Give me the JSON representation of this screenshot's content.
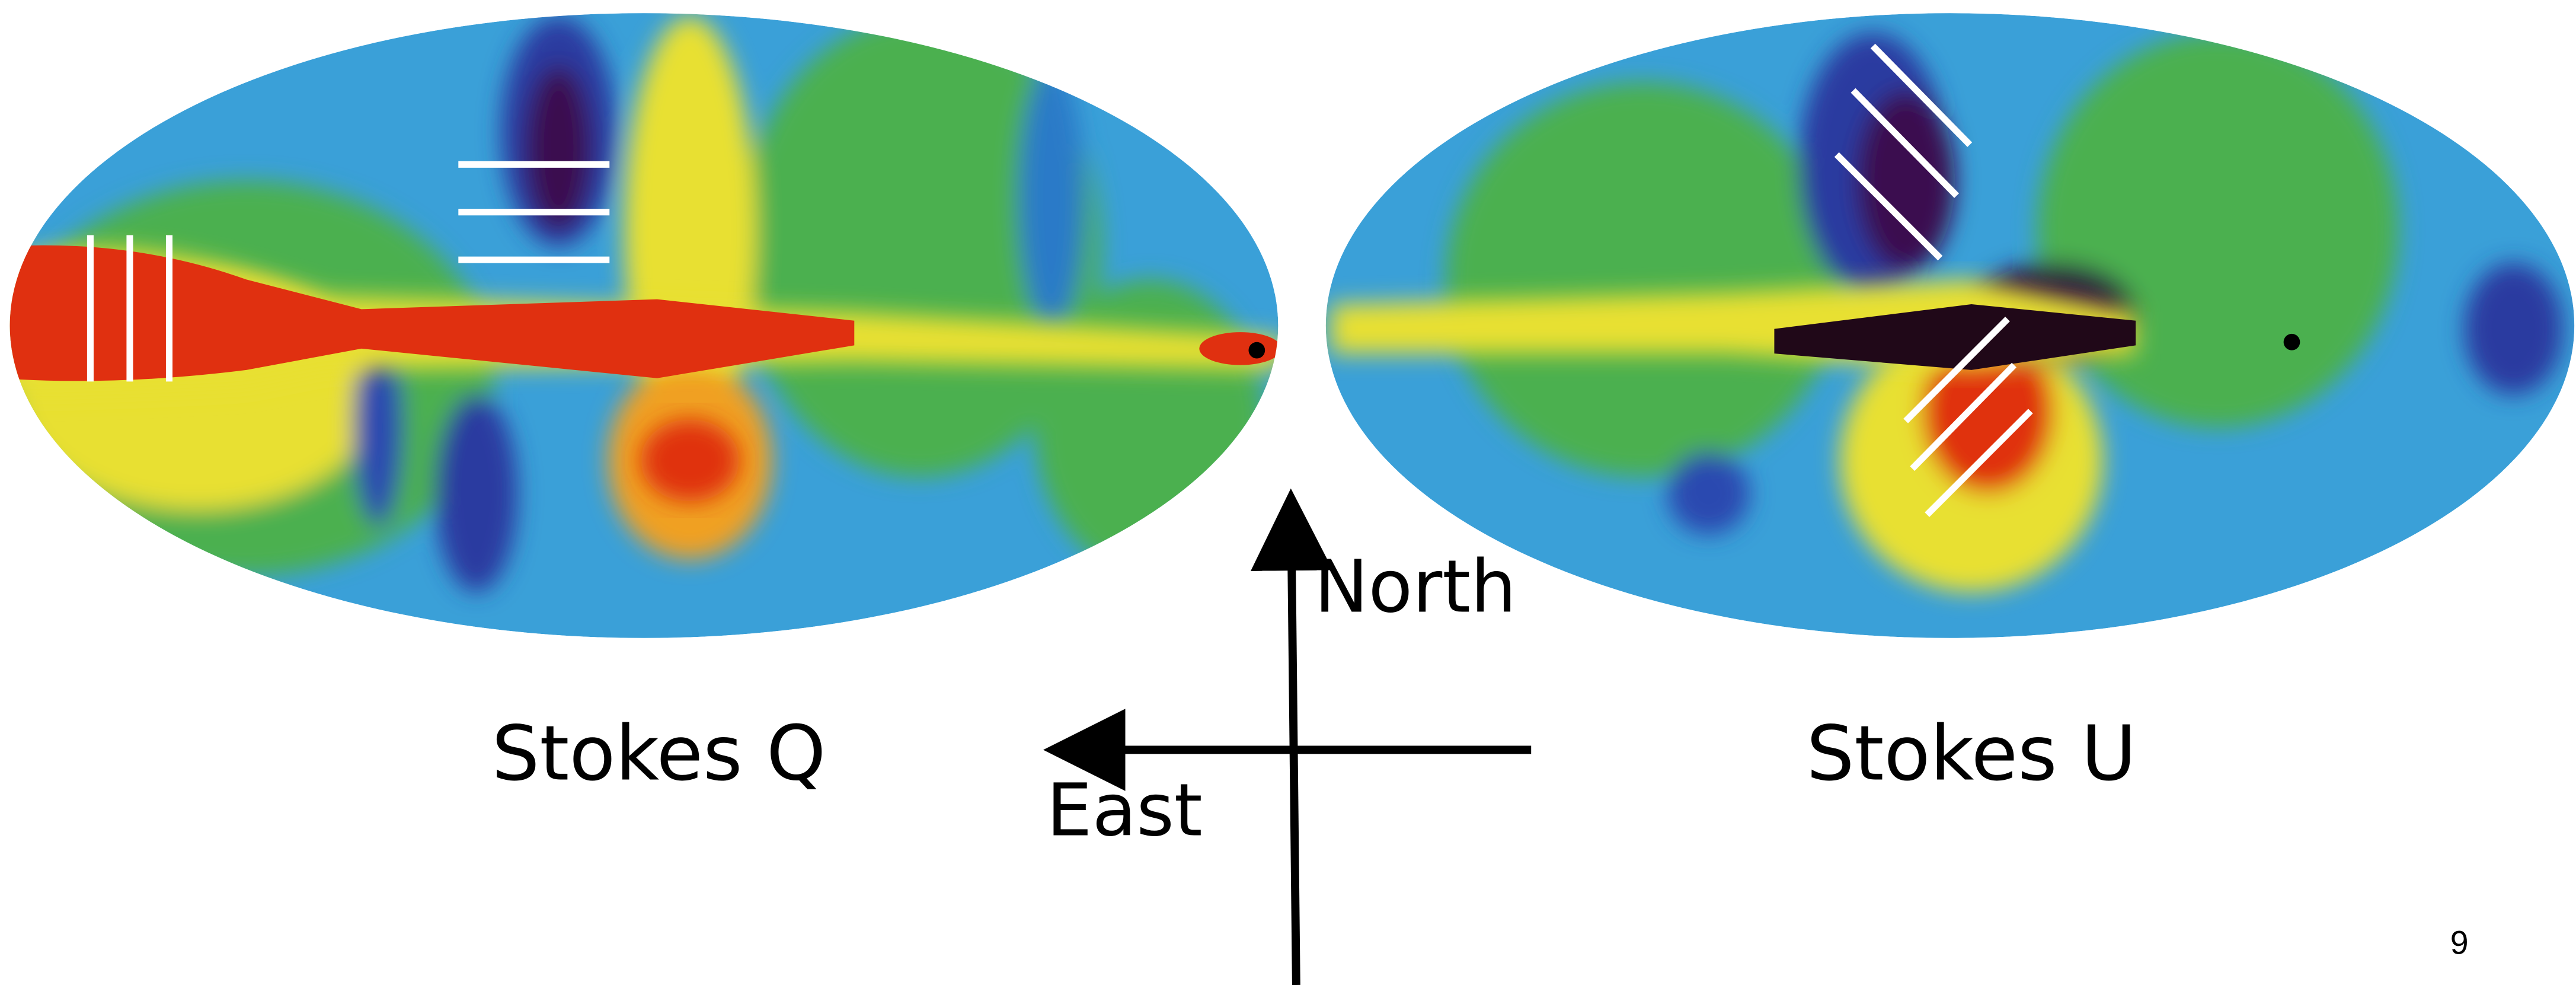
{
  "slide": {
    "left_map": {
      "caption": "Stokes Q"
    },
    "right_map": {
      "caption": "Stokes U"
    },
    "compass": {
      "north": "North",
      "east": "East"
    },
    "page_number": "9"
  }
}
